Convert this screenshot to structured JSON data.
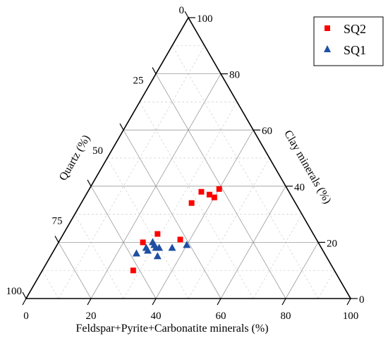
{
  "chart_data": {
    "type": "ternary-scatter",
    "axes": {
      "bottom": {
        "label": "Feldspar+Pyrite+Carbonatite minerals (%)",
        "ticks": [
          "0",
          "20",
          "40",
          "60",
          "80",
          "100"
        ]
      },
      "right": {
        "label": "Clay minerals (%)",
        "ticks": [
          "0",
          "20",
          "40",
          "60",
          "80",
          "100"
        ]
      },
      "left": {
        "label": "Quartz (%)",
        "ticks": [
          "0",
          "25",
          "50",
          "75",
          "100"
        ]
      }
    },
    "grid": true,
    "legend_position": "top-right",
    "series": [
      {
        "name": "SQ2",
        "color": "#ff0000",
        "marker": "square",
        "points": [
          {
            "feldspar": 35,
            "clay": 38
          },
          {
            "feldspar": 38,
            "clay": 37
          },
          {
            "feldspar": 40,
            "clay": 36
          },
          {
            "feldspar": 40,
            "clay": 39
          },
          {
            "feldspar": 34,
            "clay": 34
          },
          {
            "feldspar": 29,
            "clay": 23
          },
          {
            "feldspar": 26,
            "clay": 20
          },
          {
            "feldspar": 37,
            "clay": 21
          },
          {
            "feldspar": 28,
            "clay": 10
          }
        ]
      },
      {
        "name": "SQ1",
        "color": "#1f4fa3",
        "marker": "triangle",
        "points": [
          {
            "feldspar": 29,
            "clay": 20
          },
          {
            "feldspar": 30,
            "clay": 19
          },
          {
            "feldspar": 31,
            "clay": 18
          },
          {
            "feldspar": 29,
            "clay": 17
          },
          {
            "feldspar": 28,
            "clay": 18
          },
          {
            "feldspar": 32,
            "clay": 18
          },
          {
            "feldspar": 33,
            "clay": 15
          },
          {
            "feldspar": 26,
            "clay": 16
          },
          {
            "feldspar": 36,
            "clay": 18
          },
          {
            "feldspar": 40,
            "clay": 19
          }
        ]
      }
    ]
  }
}
